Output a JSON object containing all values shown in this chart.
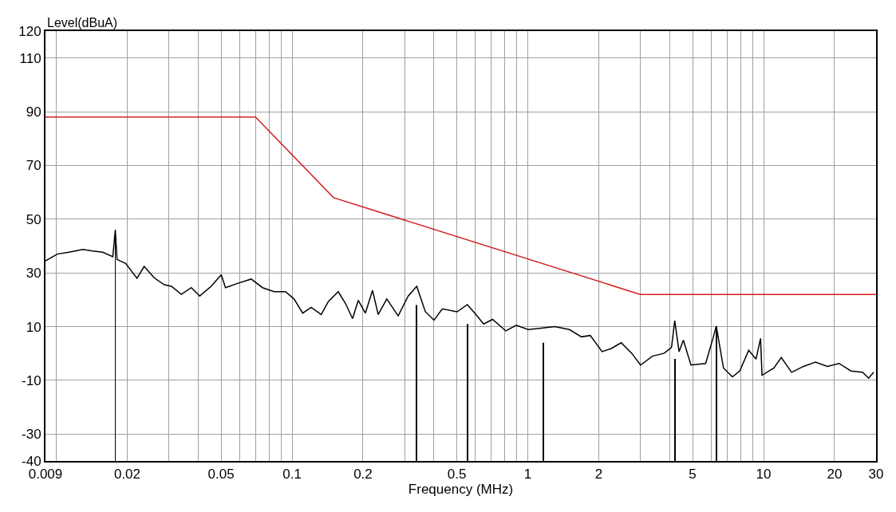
{
  "chart_data": {
    "type": "line",
    "xlabel": "Frequency (MHz)",
    "ylabel": "Level(dBuA)",
    "log": "x",
    "grid": true,
    "xlim": [
      0.009,
      30
    ],
    "ylim": [
      -40,
      120
    ],
    "xticks": [
      {
        "value": 0.009,
        "label": "0.009"
      },
      {
        "value": 0.01,
        "label": null
      },
      0.02,
      {
        "value": 0.03,
        "label": null
      },
      {
        "value": 0.04,
        "label": null
      },
      0.05,
      {
        "value": 0.06,
        "label": null
      },
      {
        "value": 0.07,
        "label": null
      },
      {
        "value": 0.08,
        "label": null
      },
      {
        "value": 0.09,
        "label": null
      },
      0.1,
      0.2,
      {
        "value": 0.3,
        "label": null
      },
      {
        "value": 0.4,
        "label": null
      },
      0.5,
      {
        "value": 0.6,
        "label": null
      },
      {
        "value": 0.7,
        "label": null
      },
      {
        "value": 0.8,
        "label": null
      },
      {
        "value": 0.9,
        "label": null
      },
      1,
      2,
      {
        "value": 3,
        "label": null
      },
      {
        "value": 4,
        "label": null
      },
      5,
      {
        "value": 6,
        "label": null
      },
      {
        "value": 7,
        "label": null
      },
      {
        "value": 8,
        "label": null
      },
      {
        "value": 9,
        "label": null
      },
      10,
      20,
      30
    ],
    "yticks": [
      -40,
      -30,
      -10,
      10,
      30,
      50,
      70,
      90,
      110,
      120
    ],
    "series": [
      {
        "color": "#d42020",
        "x": [
          0.009,
          0.07,
          0.15,
          3,
          30
        ],
        "values": [
          88,
          88,
          58,
          22,
          22
        ]
      },
      {
        "color": "#000000",
        "x": [
          0.009,
          0.0101,
          0.0113,
          0.01296,
          0.0141,
          0.01575,
          0.01737,
          0.0178,
          0.0181,
          0.0197,
          0.022,
          0.0236,
          0.026,
          0.0287,
          0.0308,
          0.0339,
          0.0374,
          0.0406,
          0.0454,
          0.0501,
          0.0522,
          0.0584,
          0.0671,
          0.075,
          0.0839,
          0.0938,
          0.102,
          0.111,
          0.1205,
          0.133,
          0.1425,
          0.157,
          0.1684,
          0.1806,
          0.191,
          0.2047,
          0.2195,
          0.232,
          0.2523,
          0.282,
          0.311,
          0.338,
          0.3675,
          0.4,
          0.434,
          0.501,
          0.554,
          0.596,
          0.65,
          0.709,
          0.807,
          0.894,
          1.003,
          1.159,
          1.301,
          1.503,
          1.688,
          1.84,
          2.066,
          2.253,
          2.49,
          2.758,
          3.008,
          3.379,
          3.79,
          4.07,
          4.2,
          4.38,
          4.57,
          4.92,
          5.68,
          6.1,
          6.3,
          6.76,
          7.38,
          7.93,
          8.65,
          9.29,
          9.71,
          9.85,
          11.06,
          11.89,
          13.15,
          14.77,
          16.6,
          18.65,
          20.9,
          23.5,
          26.3,
          27.9,
          29.3
        ],
        "values": [
          34.5,
          37,
          37.7,
          38.7,
          38.2,
          37.7,
          36,
          46,
          35,
          33.5,
          28,
          32.4,
          28.2,
          25.6,
          25,
          22,
          24.5,
          21.4,
          25,
          29.3,
          24.5,
          26,
          27.7,
          24.5,
          23,
          23,
          20.3,
          15,
          17.2,
          14.5,
          19.3,
          23,
          18.7,
          13,
          19.8,
          15,
          23.5,
          14.5,
          20.3,
          14,
          21.4,
          25,
          15.6,
          12.4,
          16.6,
          15.5,
          18.2,
          15,
          11,
          12.7,
          8.4,
          10.5,
          8.9,
          9.5,
          10,
          8.9,
          6.2,
          6.7,
          0.7,
          1.8,
          4,
          0.1,
          -4.3,
          -1,
          0.1,
          2.3,
          12.2,
          0.7,
          5,
          -4.3,
          -3.7,
          5.6,
          10.2,
          -5.4,
          -8.7,
          -6.5,
          1.2,
          -2.1,
          5.6,
          -8.1,
          -5.4,
          -1.5,
          -7,
          -4.8,
          -3.2,
          -4.8,
          -3.7,
          -6.5,
          -7,
          -9.2,
          -7
        ]
      },
      {
        "type": "bar",
        "color": "#000000",
        "x": [
          0.0178,
          0.337,
          0.554,
          1.165,
          4.2,
          6.3
        ],
        "base": [
          -40,
          -40,
          -40,
          -40,
          -40,
          -40
        ],
        "values": [
          86,
          58,
          51,
          44,
          38,
          50
        ]
      }
    ]
  }
}
